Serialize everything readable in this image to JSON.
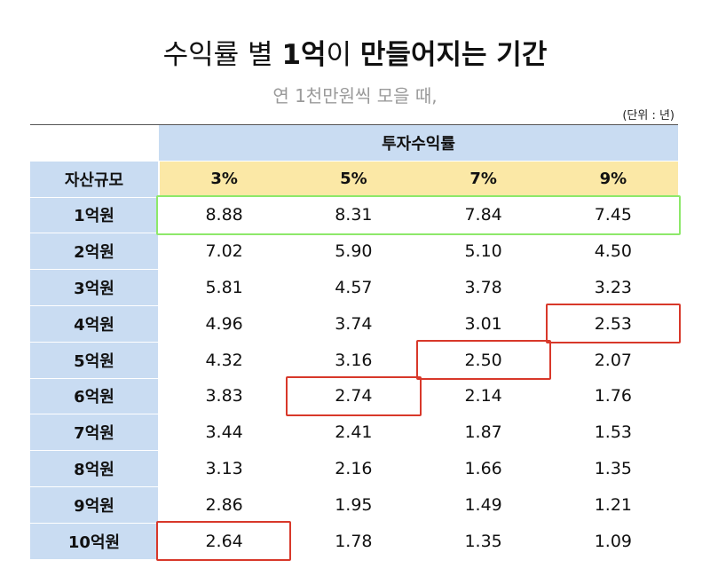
{
  "title": {
    "part1": "수익률 별 ",
    "part2": "1억",
    "part3": "이 ",
    "part4": "만들어지는 기간"
  },
  "subtitle": "연 1천만원씩 모을 때,",
  "unit_note": "(단위 : 년)",
  "table": {
    "group_header": "투자수익률",
    "row_header_label": "자산규모",
    "rates": [
      "3%",
      "5%",
      "7%",
      "9%"
    ],
    "rows": [
      {
        "label": "1억원",
        "values": [
          "8.88",
          "8.31",
          "7.84",
          "7.45"
        ]
      },
      {
        "label": "2억원",
        "values": [
          "7.02",
          "5.90",
          "5.10",
          "4.50"
        ]
      },
      {
        "label": "3억원",
        "values": [
          "5.81",
          "4.57",
          "3.78",
          "3.23"
        ]
      },
      {
        "label": "4억원",
        "values": [
          "4.96",
          "3.74",
          "3.01",
          "2.53"
        ]
      },
      {
        "label": "5억원",
        "values": [
          "4.32",
          "3.16",
          "2.50",
          "2.07"
        ]
      },
      {
        "label": "6억원",
        "values": [
          "3.83",
          "2.74",
          "2.14",
          "1.76"
        ]
      },
      {
        "label": "7억원",
        "values": [
          "3.44",
          "2.41",
          "1.87",
          "1.53"
        ]
      },
      {
        "label": "8억원",
        "values": [
          "3.13",
          "2.16",
          "1.66",
          "1.35"
        ]
      },
      {
        "label": "9억원",
        "values": [
          "2.86",
          "1.95",
          "1.49",
          "1.21"
        ]
      },
      {
        "label": "10억원",
        "values": [
          "2.64",
          "1.78",
          "1.35",
          "1.09"
        ]
      }
    ]
  },
  "highlights": {
    "green_row": "1억원",
    "red_cells": [
      {
        "row": "4억원",
        "rate": "9%"
      },
      {
        "row": "5억원",
        "rate": "7%"
      },
      {
        "row": "6억원",
        "rate": "5%"
      },
      {
        "row": "10억원",
        "rate": "3%"
      }
    ]
  },
  "colors": {
    "header_blue": "#c9dcf2",
    "rate_yellow": "#fbe8a6",
    "highlight_green": "#8de86a",
    "highlight_red": "#d8382a",
    "subtitle_gray": "#9a9a9a"
  }
}
